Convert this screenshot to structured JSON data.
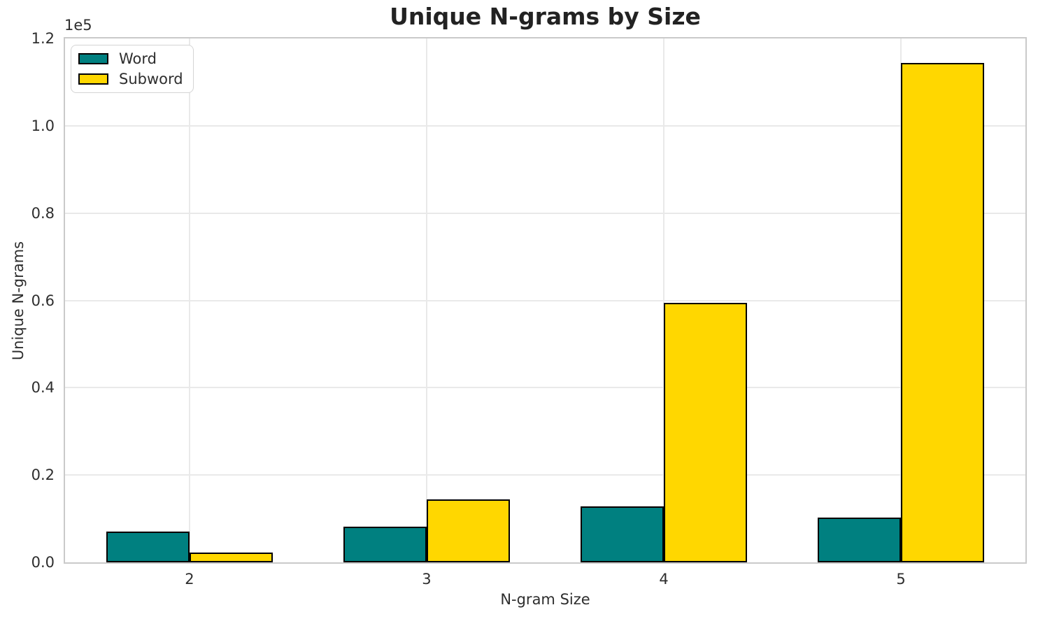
{
  "chart_data": {
    "type": "bar",
    "title": "Unique N-grams by Size",
    "xlabel": "N-gram Size",
    "ylabel": "Unique N-grams",
    "y_axis_offset_text": "1e5",
    "categories": [
      "2",
      "3",
      "4",
      "5"
    ],
    "series": [
      {
        "name": "Word",
        "color": "#008080",
        "values": [
          7000,
          8100,
          12800,
          10200
        ]
      },
      {
        "name": "Subword",
        "color": "#FFD700",
        "values": [
          2200,
          14500,
          59500,
          114400
        ]
      }
    ],
    "ylim": [
      0,
      120000
    ],
    "yticks": [
      {
        "value": 0,
        "label": "0.0"
      },
      {
        "value": 20000,
        "label": "0.2"
      },
      {
        "value": 40000,
        "label": "0.4"
      },
      {
        "value": 60000,
        "label": "0.6"
      },
      {
        "value": 80000,
        "label": "0.8"
      },
      {
        "value": 100000,
        "label": "1.0"
      },
      {
        "value": 120000,
        "label": "1.2"
      }
    ],
    "bar_width_fraction": 0.35,
    "bar_edge_color": "#000000",
    "grid": true,
    "legend_position": "upper left",
    "colors": {
      "grid": "#e9e9e9",
      "spine": "#cacaca",
      "text": "#2e2e2e",
      "background": "#ffffff"
    }
  }
}
